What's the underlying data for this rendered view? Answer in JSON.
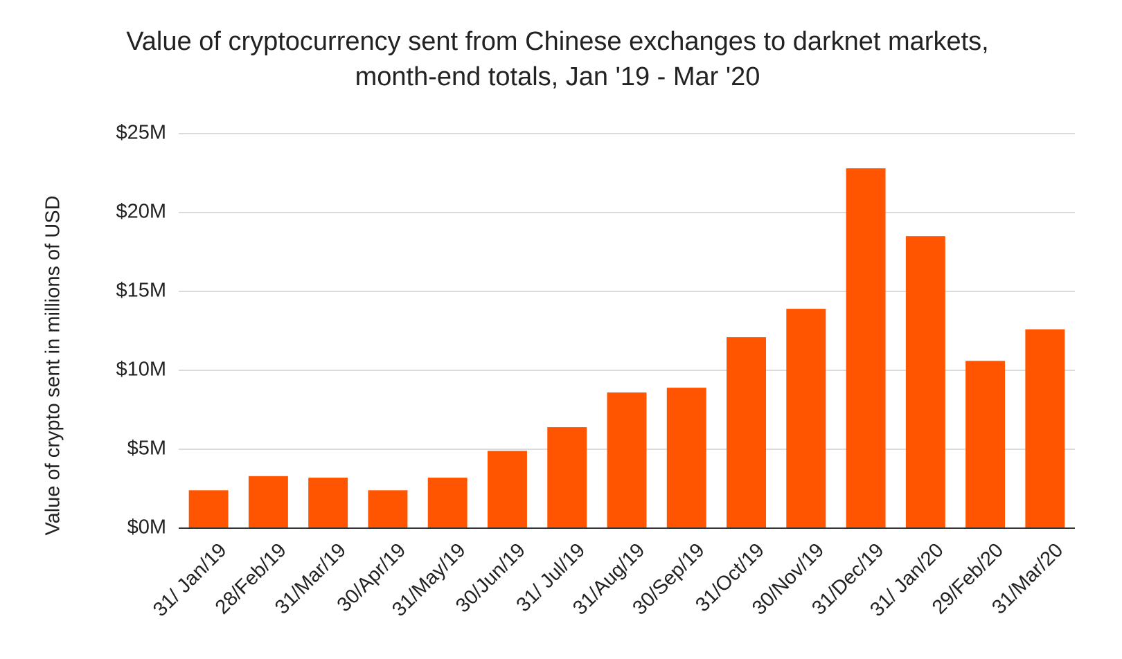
{
  "chart_data": {
    "type": "bar",
    "title": [
      "Value of cryptocurrency sent from Chinese exchanges to darknet markets,",
      "month-end totals, Jan '19 - Mar '20"
    ],
    "y_label": "Value of crypto sent in millions of USD",
    "categories": [
      "31/ Jan/19",
      "28/Feb/19",
      "31/Mar/19",
      "30/Apr/19",
      "31/May/19",
      "30/Jun/19",
      "31/ Jul/19",
      "31/Aug/19",
      "30/Sep/19",
      "31/Oct/19",
      "30/Nov/19",
      "31/Dec/19",
      "31/ Jan/20",
      "29/Feb/20",
      "31/Mar/20"
    ],
    "values": [
      2.4,
      3.3,
      3.2,
      2.4,
      3.2,
      4.9,
      6.4,
      8.6,
      8.9,
      12.1,
      13.9,
      22.8,
      18.5,
      10.6,
      12.6
    ],
    "color": "#ff5500",
    "ylim": [
      0,
      25
    ],
    "yticks": [
      {
        "value": 0,
        "label": "$0M"
      },
      {
        "value": 5,
        "label": "$5M"
      },
      {
        "value": 10,
        "label": "$10M"
      },
      {
        "value": 15,
        "label": "$15M"
      },
      {
        "value": 20,
        "label": "$20M"
      },
      {
        "value": 25,
        "label": "$25M"
      }
    ],
    "grid": true
  }
}
